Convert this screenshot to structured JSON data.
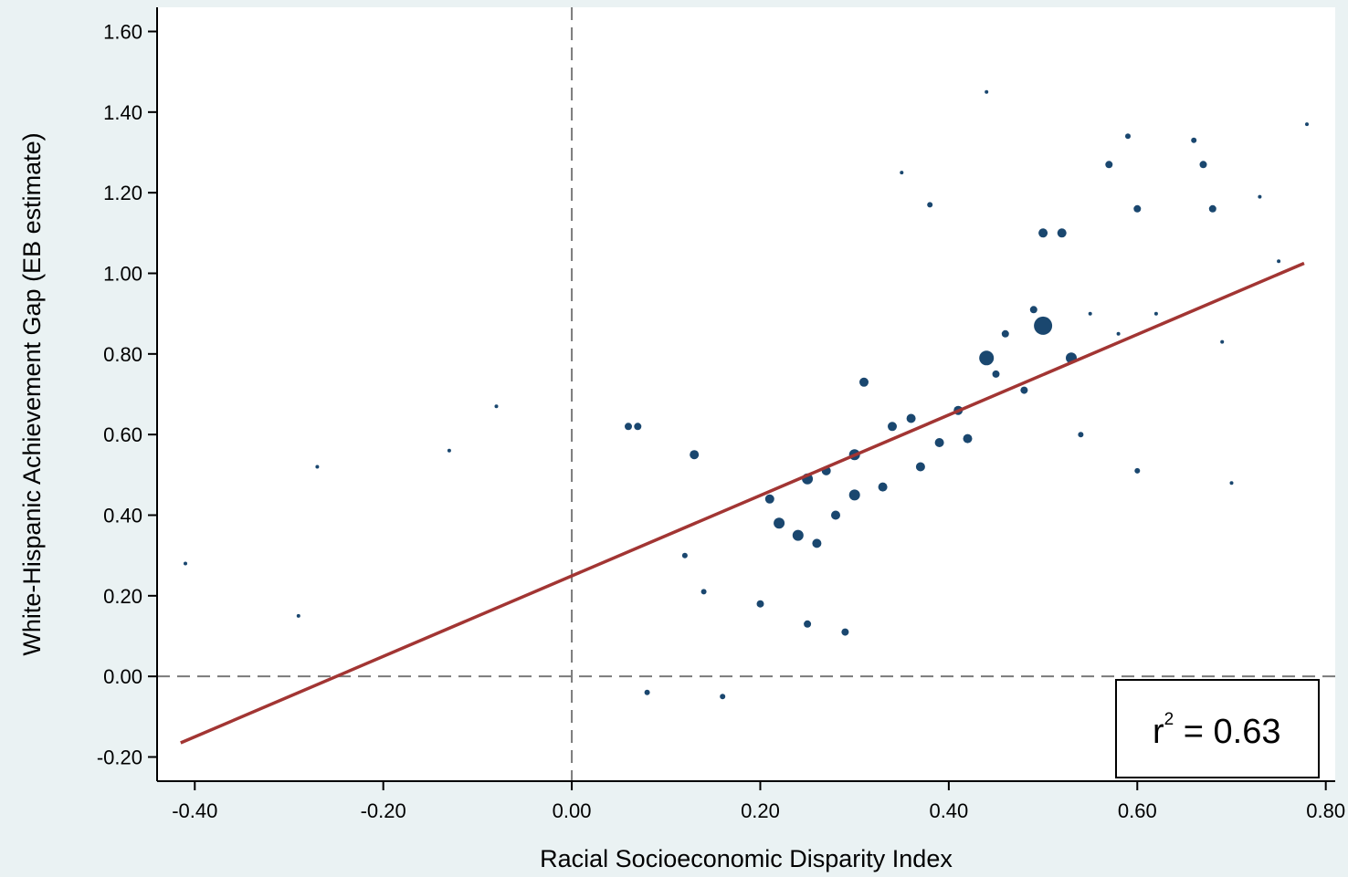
{
  "chart_data": {
    "type": "scatter",
    "title": "",
    "xlabel": "Racial Socioeconomic Disparity Index",
    "ylabel": "White-Hispanic Achievement Gap (EB estimate)",
    "xlim": [
      -0.44,
      0.81
    ],
    "ylim": [
      -0.26,
      1.66
    ],
    "x_ticks": [
      -0.4,
      -0.2,
      0.0,
      0.2,
      0.4,
      0.6,
      0.8
    ],
    "y_ticks": [
      -0.2,
      0.0,
      0.2,
      0.4,
      0.6,
      0.8,
      1.0,
      1.2,
      1.4,
      1.6
    ],
    "x_tick_labels": [
      "-0.40",
      "-0.20",
      "0.00",
      "0.20",
      "0.40",
      "0.60",
      "0.80"
    ],
    "y_tick_labels": [
      "-0.20",
      "0.00",
      "0.20",
      "0.40",
      "0.60",
      "0.80",
      "1.00",
      "1.20",
      "1.40",
      "1.60"
    ],
    "reference_lines": [
      {
        "axis": "x",
        "value": 0
      },
      {
        "axis": "y",
        "value": 0
      }
    ],
    "fit_line": {
      "x": [
        -0.415,
        0.777
      ],
      "y": [
        -0.165,
        1.025
      ]
    },
    "annotation": {
      "prefix": "r",
      "superscript": "2",
      "suffix": " = 0.63"
    },
    "grid": false,
    "marker_color": "#1a476f",
    "fit_color": "#a23533",
    "background_color": "#eaf2f3",
    "plot_color": "#ffffff",
    "series": [
      {
        "x": [
          0.5,
          0.44,
          0.53,
          0.13,
          0.07,
          0.06,
          0.25,
          0.29,
          0.5,
          0.38,
          0.52,
          0.6,
          0.57,
          0.59,
          0.66,
          0.67,
          0.68,
          0.42,
          0.36,
          0.25,
          0.12,
          0.16,
          0.08,
          0.14,
          0.2,
          0.24,
          0.28,
          0.3,
          0.34,
          0.21,
          0.22,
          0.26,
          0.3,
          0.33,
          0.37,
          0.39,
          0.41,
          0.45,
          0.48,
          0.54,
          0.46,
          0.49,
          0.31,
          0.27,
          -0.41,
          -0.29,
          -0.27,
          -0.08,
          -0.13,
          0.44,
          0.35,
          0.78,
          0.6,
          0.73,
          0.7,
          0.75,
          0.62,
          0.69,
          0.55,
          0.58
        ],
        "y": [
          0.87,
          0.79,
          0.79,
          0.55,
          0.62,
          0.62,
          0.13,
          0.11,
          1.1,
          1.17,
          1.1,
          1.16,
          1.27,
          1.34,
          1.33,
          1.27,
          1.16,
          0.59,
          0.64,
          0.49,
          0.3,
          -0.05,
          -0.04,
          0.21,
          0.18,
          0.35,
          0.4,
          0.55,
          0.62,
          0.44,
          0.38,
          0.33,
          0.45,
          0.47,
          0.52,
          0.58,
          0.66,
          0.75,
          0.71,
          0.6,
          0.85,
          0.91,
          0.73,
          0.51,
          0.28,
          0.15,
          0.52,
          0.67,
          0.56,
          1.45,
          1.25,
          1.37,
          0.51,
          1.19,
          0.48,
          1.03,
          0.9,
          0.83,
          0.9,
          0.85
        ],
        "sizes": [
          10,
          8,
          6,
          5,
          4,
          4,
          4,
          4,
          5,
          3,
          5,
          4,
          4,
          3,
          3,
          4,
          4,
          5,
          5,
          6,
          3,
          3,
          3,
          3,
          4,
          6,
          5,
          6,
          5,
          5,
          6,
          5,
          6,
          5,
          5,
          5,
          5,
          4,
          4,
          3,
          4,
          4,
          5,
          5,
          2,
          2,
          2,
          2,
          2,
          2,
          2,
          2,
          3,
          2,
          2,
          2,
          2,
          2,
          2,
          2
        ]
      }
    ]
  }
}
